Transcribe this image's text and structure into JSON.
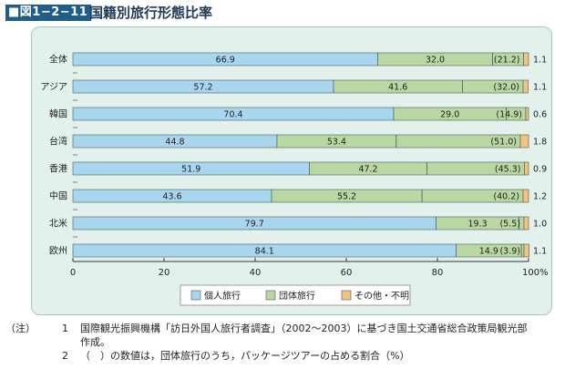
{
  "header": {
    "figure_number": "■図1−2−11",
    "title": "国籍別旅行形態比率"
  },
  "chart_data": {
    "type": "bar",
    "orientation": "horizontal",
    "stacked": true,
    "categories": [
      "全体",
      "アジア",
      "韓国",
      "台湾",
      "香港",
      "中国",
      "北米",
      "欧州"
    ],
    "series": [
      {
        "name": "個人旅行",
        "color": "#a9d6ef",
        "values": [
          66.9,
          57.2,
          70.4,
          44.8,
          51.9,
          43.6,
          79.7,
          84.1
        ]
      },
      {
        "name": "団体旅行",
        "color": "#b9d7a3",
        "values": [
          32.0,
          41.6,
          29.0,
          53.4,
          47.2,
          55.2,
          19.3,
          14.9
        ]
      },
      {
        "name": "その他・不明",
        "color": "#f4c27f",
        "values": [
          1.1,
          1.1,
          0.6,
          1.8,
          0.9,
          1.2,
          1.0,
          1.1
        ]
      }
    ],
    "package_share_within_group": [
      "(21.2)",
      "(32.0)",
      "(14.9)",
      "(51.0)",
      "(45.3)",
      "(40.2)",
      "(5.5)",
      "(3.9)"
    ],
    "package_share_values": [
      21.2,
      32.0,
      14.9,
      51.0,
      45.3,
      40.2,
      5.5,
      3.9
    ],
    "xlim": [
      0,
      100
    ],
    "xticks": [
      "0",
      "20",
      "40",
      "60",
      "80",
      "100%"
    ],
    "xtick_values": [
      0,
      20,
      40,
      60,
      80,
      100
    ],
    "legend_position": "bottom",
    "grid": false
  },
  "notes": {
    "prefix": "（注）",
    "items": [
      {
        "num": "1",
        "text": "国際観光振興機構「訪日外国人旅行者調査」（2002〜2003）に基づき国土交通省総合政策局観光部",
        "cont": "作成。"
      },
      {
        "num": "2",
        "text": "（　）の数値は，団体旅行のうち，パッケージツアーの占める割合（%）"
      }
    ]
  },
  "colors": {
    "badge_bg": "#1f5e8c",
    "title": "#1f3b58",
    "panel_bg": "#e3f1ec",
    "panel_border": "#9fc9bc",
    "bar_stroke": "#4a5a5a"
  }
}
